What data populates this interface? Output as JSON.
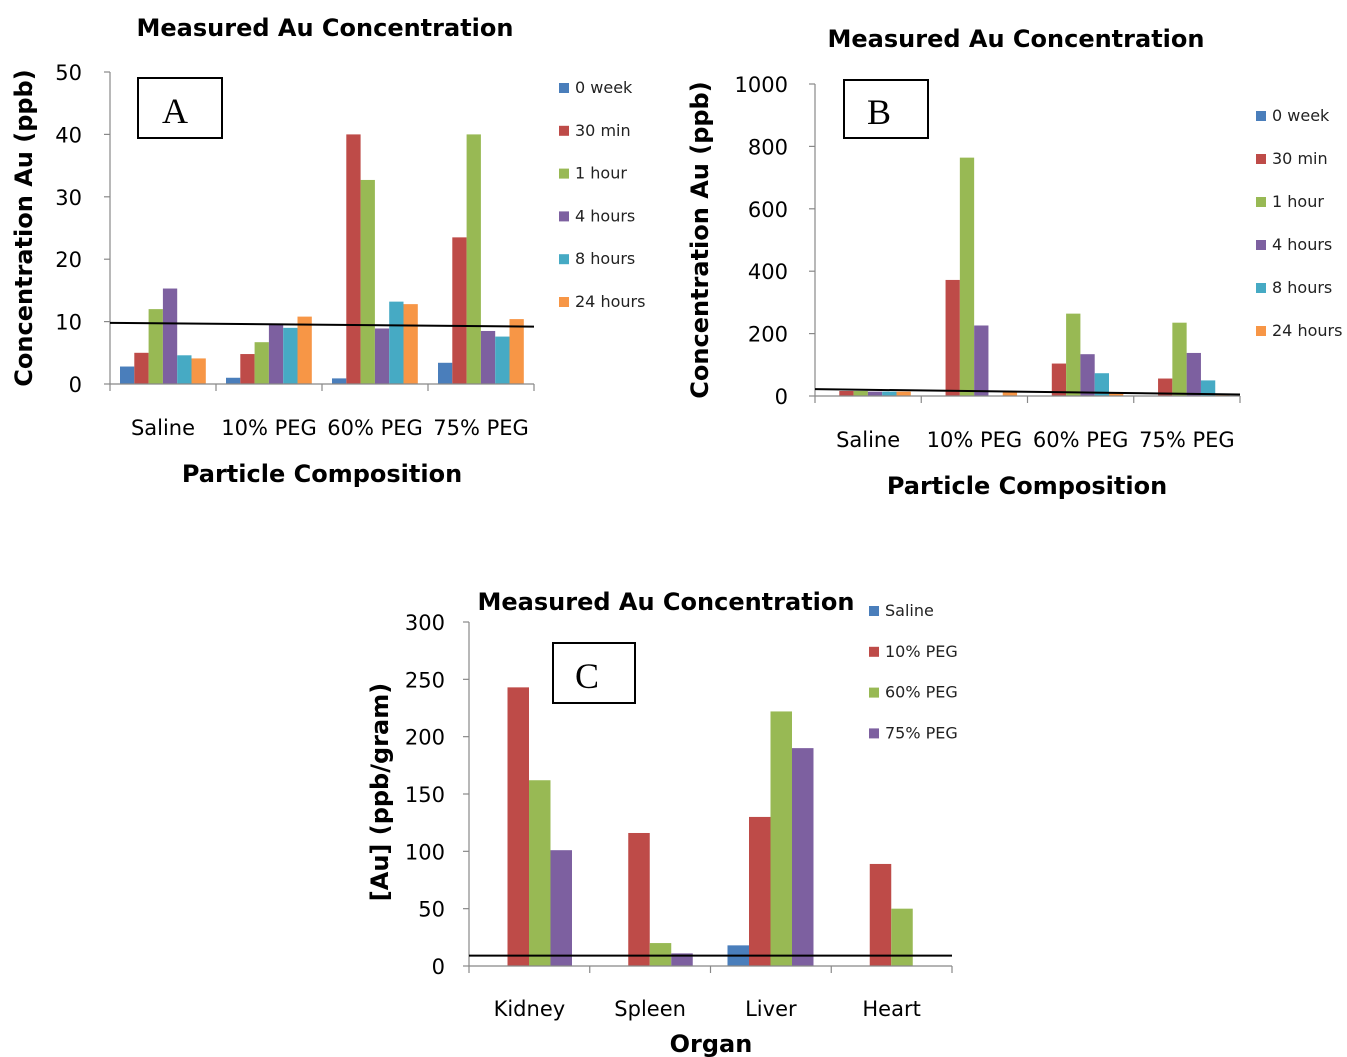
{
  "chart_data": [
    {
      "panel": "A",
      "type": "bar",
      "title": "Measured Au Concentration",
      "xlabel": "Particle Composition",
      "ylabel": "Concentration Au (ppb)",
      "ylim": [
        0,
        50
      ],
      "yticks": [
        "0",
        "10",
        "20",
        "30",
        "40",
        "50"
      ],
      "categories": [
        "Saline",
        "10% PEG",
        "60% PEG",
        "75% PEG"
      ],
      "series": [
        {
          "name": "0 week",
          "color": "#4a7ebb",
          "values": [
            2.8,
            1.0,
            0.9,
            3.4
          ]
        },
        {
          "name": "30 min",
          "color": "#be4b48",
          "values": [
            5.0,
            4.8,
            40.0,
            23.5
          ]
        },
        {
          "name": "1 hour",
          "color": "#98b954",
          "values": [
            12.0,
            6.7,
            32.7,
            40.0
          ]
        },
        {
          "name": "4 hours",
          "color": "#7d60a0",
          "values": [
            15.3,
            9.7,
            8.9,
            8.5
          ]
        },
        {
          "name": "8 hours",
          "color": "#46aac4",
          "values": [
            4.6,
            9.0,
            13.2,
            7.6
          ]
        },
        {
          "name": "24 hours",
          "color": "#f79646",
          "values": [
            4.1,
            10.8,
            12.8,
            10.4
          ]
        }
      ],
      "reference_line": [
        9.8,
        9.2
      ],
      "legend": "right",
      "grid": false
    },
    {
      "panel": "B",
      "type": "bar",
      "title": "Measured Au Concentration",
      "xlabel": "Particle Composition",
      "ylabel": "Concentration Au (ppb)",
      "ylim": [
        0,
        1000
      ],
      "yticks": [
        "0",
        "200",
        "400",
        "600",
        "800",
        "1000"
      ],
      "categories": [
        "Saline",
        "10% PEG",
        "60% PEG",
        "75% PEG"
      ],
      "series": [
        {
          "name": "0 week",
          "color": "#4a7ebb",
          "values": [
            0,
            0,
            0,
            0
          ]
        },
        {
          "name": "30 min",
          "color": "#be4b48",
          "values": [
            16,
            372,
            104,
            56
          ]
        },
        {
          "name": "1 hour",
          "color": "#98b954",
          "values": [
            16,
            764,
            264,
            235
          ]
        },
        {
          "name": "4 hours",
          "color": "#7d60a0",
          "values": [
            14,
            226,
            134,
            138
          ]
        },
        {
          "name": "8 hours",
          "color": "#46aac4",
          "values": [
            14,
            0,
            73,
            50
          ]
        },
        {
          "name": "24 hours",
          "color": "#f79646",
          "values": [
            14,
            14,
            10,
            6
          ]
        }
      ],
      "reference_line": [
        22,
        5
      ],
      "legend": "right",
      "grid": false
    },
    {
      "panel": "C",
      "type": "bar",
      "title": "Measured Au Concentration",
      "xlabel": "Organ",
      "ylabel": "[Au] (ppb/gram)",
      "ylim": [
        0,
        300
      ],
      "yticks": [
        "0",
        "50",
        "100",
        "150",
        "200",
        "250",
        "300"
      ],
      "categories": [
        "Kidney",
        "Spleen",
        "Liver",
        "Heart"
      ],
      "series": [
        {
          "name": "Saline",
          "color": "#4a7ebb",
          "values": [
            0,
            0,
            18,
            0
          ]
        },
        {
          "name": "10% PEG",
          "color": "#be4b48",
          "values": [
            243,
            116,
            130,
            89
          ]
        },
        {
          "name": "60% PEG",
          "color": "#98b954",
          "values": [
            162,
            20,
            222,
            50
          ]
        },
        {
          "name": "75% PEG",
          "color": "#7d60a0",
          "values": [
            101,
            11,
            190,
            0
          ]
        }
      ],
      "reference_line": [
        9,
        9
      ],
      "legend": "right",
      "grid": false
    }
  ]
}
